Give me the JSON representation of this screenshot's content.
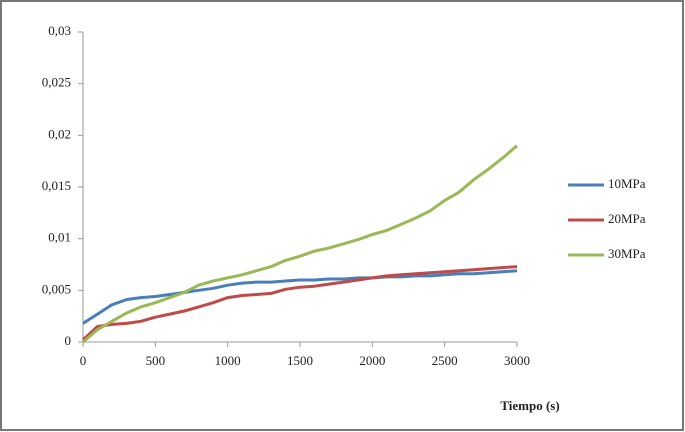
{
  "chart_data": {
    "type": "line",
    "x_label": "Tiempo (s)",
    "x": [
      0,
      100,
      200,
      300,
      400,
      500,
      600,
      700,
      800,
      900,
      1000,
      1100,
      1200,
      1300,
      1400,
      1500,
      1600,
      1700,
      1800,
      1900,
      2000,
      2100,
      2200,
      2300,
      2400,
      2500,
      2600,
      2700,
      2800,
      2900,
      3000
    ],
    "series": [
      {
        "name": "10MPa",
        "color": "#4a7ebb",
        "values": [
          0.0018,
          0.0027,
          0.0036,
          0.0041,
          0.0043,
          0.0044,
          0.0046,
          0.0048,
          0.005,
          0.0052,
          0.0055,
          0.0057,
          0.0058,
          0.0058,
          0.0059,
          0.006,
          0.006,
          0.0061,
          0.0061,
          0.0062,
          0.0062,
          0.0063,
          0.0063,
          0.0064,
          0.0064,
          0.0065,
          0.0066,
          0.0066,
          0.0067,
          0.0068,
          0.0069
        ]
      },
      {
        "name": "20MPa",
        "color": "#be4b48",
        "values": [
          0.0002,
          0.0015,
          0.0017,
          0.0018,
          0.002,
          0.0024,
          0.0027,
          0.003,
          0.0034,
          0.0038,
          0.0043,
          0.0045,
          0.0046,
          0.0047,
          0.0051,
          0.0053,
          0.0054,
          0.0056,
          0.0058,
          0.006,
          0.0062,
          0.0064,
          0.0065,
          0.0066,
          0.0067,
          0.0068,
          0.0069,
          0.007,
          0.0071,
          0.0072,
          0.0073
        ]
      },
      {
        "name": "30MPa",
        "color": "#98b954",
        "values": [
          0,
          0.0012,
          0.002,
          0.0028,
          0.0034,
          0.0038,
          0.0043,
          0.0048,
          0.0055,
          0.0059,
          0.0062,
          0.0065,
          0.0069,
          0.0073,
          0.0079,
          0.0083,
          0.0088,
          0.0091,
          0.0095,
          0.0099,
          0.0104,
          0.0108,
          0.0114,
          0.012,
          0.0127,
          0.0137,
          0.0145,
          0.0157,
          0.0167,
          0.0178,
          0.019
        ]
      }
    ],
    "xlim": [
      0,
      3000
    ],
    "xticks": [
      0,
      500,
      1000,
      1500,
      2000,
      2500,
      3000
    ],
    "ylim": [
      0,
      0.03
    ],
    "yticks": [
      0,
      {
        "value": 0.005,
        "label": "0,005"
      },
      {
        "value": 0.01,
        "label": "0,01"
      },
      {
        "value": 0.015,
        "label": "0,015"
      },
      {
        "value": 0.02,
        "label": "0,02"
      },
      {
        "value": 0.025,
        "label": "0,025"
      },
      {
        "value": 0.03,
        "label": "0,03"
      }
    ],
    "grid": false,
    "legend": "right"
  }
}
